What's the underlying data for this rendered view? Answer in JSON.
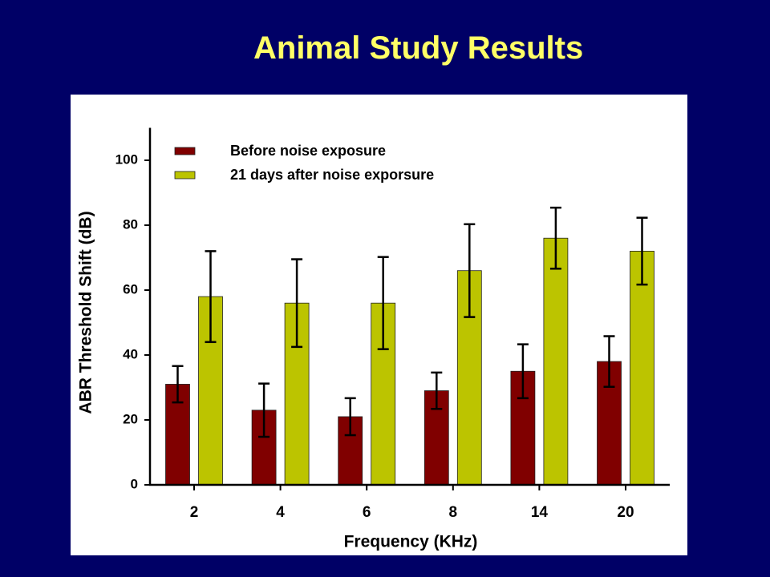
{
  "slide": {
    "title": "Animal Study Results",
    "background": "#000066",
    "title_color": "#ffff66"
  },
  "chart_data": {
    "type": "bar",
    "categories": [
      "2",
      "4",
      "6",
      "8",
      "14",
      "20"
    ],
    "series": [
      {
        "name": "Before noise exposure",
        "color": "#800000",
        "values": [
          31,
          23,
          21,
          29,
          35,
          38
        ],
        "errors": [
          5.6,
          8.2,
          5.7,
          5.6,
          8.3,
          7.8
        ]
      },
      {
        "name": "21 days after noise exporsure",
        "color": "#bcc400",
        "values": [
          58,
          56,
          56,
          66,
          76,
          72
        ],
        "errors": [
          14,
          13.5,
          14.2,
          14.3,
          9.4,
          10.3
        ]
      }
    ],
    "xlabel": "Frequency (KHz)",
    "ylabel": "ABR Threshold Shift (dB)",
    "ylim": [
      0,
      110
    ],
    "yticks": [
      0,
      20,
      40,
      60,
      80,
      100
    ],
    "grid": false,
    "legend": "top-left"
  }
}
